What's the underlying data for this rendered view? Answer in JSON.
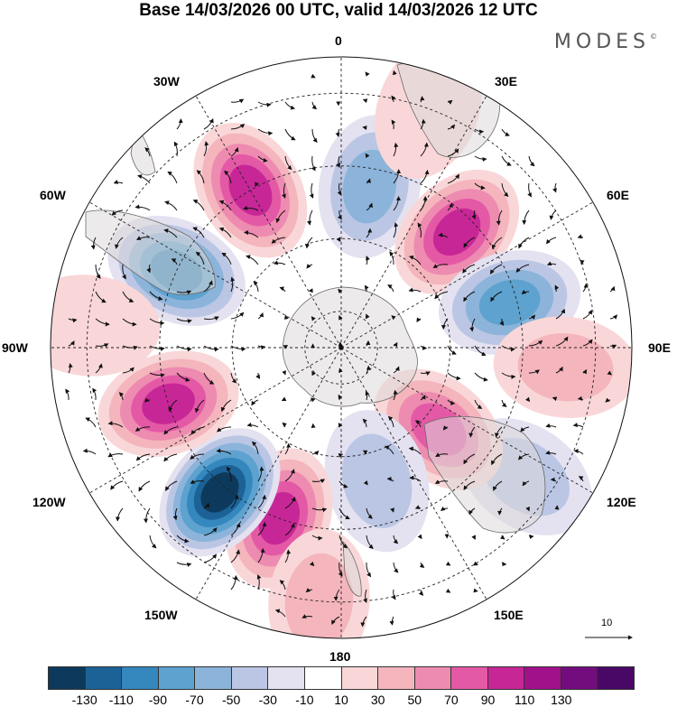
{
  "title": "Base 14/03/2026 00 UTC, valid 14/03/2026 12 UTC",
  "brand": "MODES",
  "brand_mark": "©",
  "meridian_labels": {
    "top": "0",
    "top_left": "30W",
    "top_right": "30E",
    "upper_left": "60W",
    "upper_right": "60E",
    "left": "90W",
    "right": "90E",
    "lower_left": "120W",
    "lower_right": "120E",
    "bottom_left": "150W",
    "bottom_right": "150E",
    "bottom": "180"
  },
  "vector_scale": "10",
  "colorbar": {
    "colors": [
      "#0d3a5c",
      "#1c6296",
      "#3488bd",
      "#5ea2cf",
      "#8cb4da",
      "#bac6e4",
      "#e4e1f0",
      "#ffffff",
      "#f9d7d8",
      "#f4b5bd",
      "#ee8bb0",
      "#e459a6",
      "#c72796",
      "#a0118a",
      "#730d7e",
      "#4a0866"
    ],
    "ticks": [
      "-130",
      "-110",
      "-90",
      "-70",
      "-50",
      "-30",
      "-10",
      "10",
      "30",
      "50",
      "70",
      "90",
      "110",
      "130"
    ]
  },
  "anomalies": [
    {
      "lon": 10,
      "lat": -45,
      "value": -45
    },
    {
      "lon": -30,
      "lat": -40,
      "value": 85
    },
    {
      "lon": -65,
      "lat": -40,
      "value": -85
    },
    {
      "lon": 45,
      "lat": -45,
      "value": 100
    },
    {
      "lon": 75,
      "lat": -42,
      "value": -75
    },
    {
      "lon": 95,
      "lat": -28,
      "value": 40
    },
    {
      "lon": 125,
      "lat": -28,
      "value": -35
    },
    {
      "lon": 130,
      "lat": -55,
      "value": 65
    },
    {
      "lon": 165,
      "lat": -52,
      "value": -40
    },
    {
      "lon": -160,
      "lat": -40,
      "value": 95
    },
    {
      "lon": -140,
      "lat": -38,
      "value": -130
    },
    {
      "lon": -108,
      "lat": -40,
      "value": 85
    },
    {
      "lon": -85,
      "lat": -20,
      "value": 20
    },
    {
      "lon": 20,
      "lat": -20,
      "value": 20
    },
    {
      "lon": -175,
      "lat": -20,
      "value": 30
    }
  ]
}
